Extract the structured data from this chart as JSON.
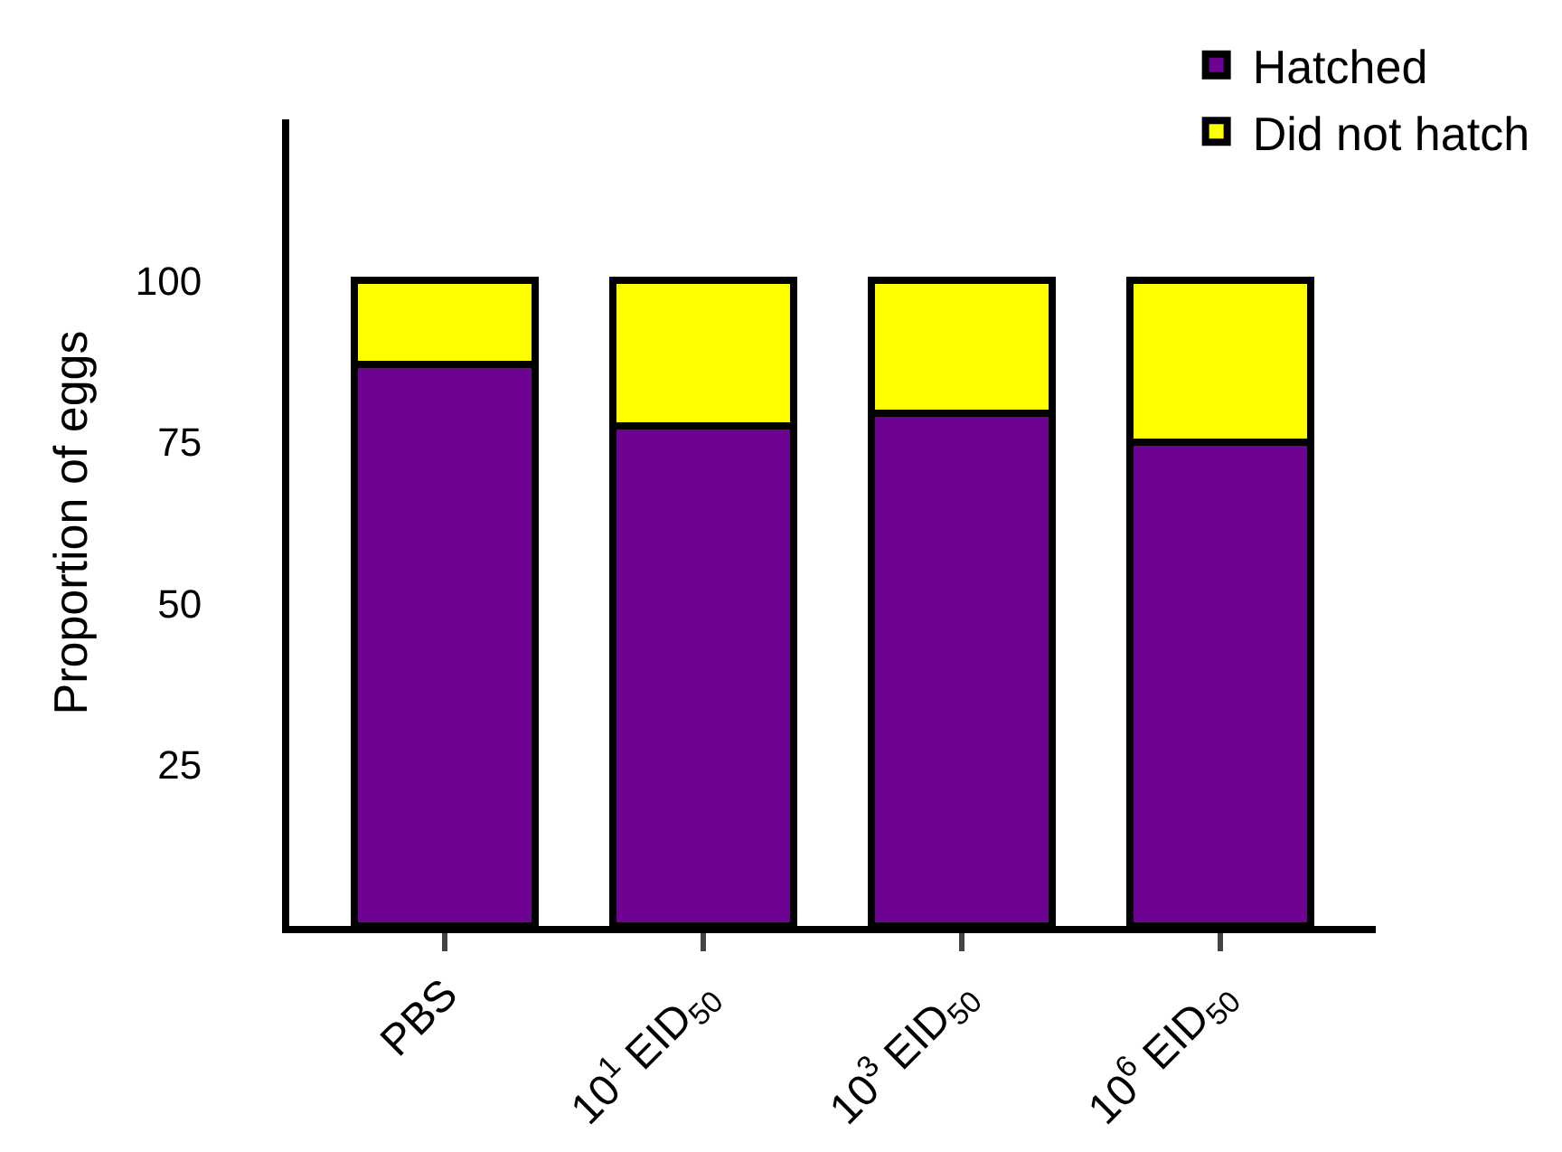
{
  "chart_data": {
    "type": "bar",
    "ylabel": "Proportion of eggs",
    "categories": [
      "PBS",
      "10$^{1}$ EID$_{50}$",
      "10$^{3}$ EID$_{50}$",
      "10$^{6}$ EID$_{50}$"
    ],
    "series": [
      {
        "name": "Hatched",
        "color": "#6e0291",
        "values": [
          87,
          77.5,
          79.5,
          75
        ]
      },
      {
        "name": "Did not hatch",
        "color": "#ffff00",
        "values": [
          13,
          22.5,
          20.5,
          25
        ]
      }
    ],
    "stacked": true,
    "ylim": [
      0,
      125
    ],
    "yticks": [
      25,
      50,
      75,
      100
    ],
    "grid": false,
    "legend": "top right"
  }
}
